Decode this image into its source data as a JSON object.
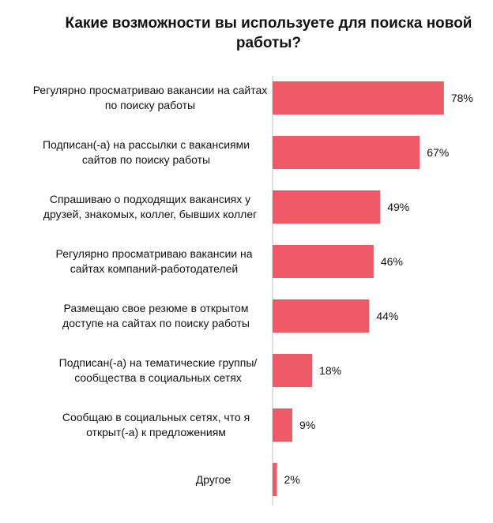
{
  "chart_data": {
    "type": "bar",
    "orientation": "horizontal",
    "title": "Какие возможности вы используете для поиска новой работы?",
    "categories": [
      "Регулярно просматриваю вакансии  на сайтах по поиску работы",
      "Подписан(-а) на рассылки с вакансиями сайтов по поиску работы",
      "Спрашиваю о подходящих вакансиях у друзей, знакомых, коллег, бывших коллег",
      "Регулярно просматриваю вакансии на сайтах компаний-работодателей",
      "Размещаю свое резюме в открытом доступе на сайтах по поиску работы",
      "Подписан(-а) на тематические группы/сообщества в социальных сетях",
      "Сообщаю в социальных сетях, что я открыт(-а) к предложениям",
      "Другое"
    ],
    "values": [
      78,
      67,
      49,
      46,
      44,
      18,
      9,
      2
    ],
    "value_labels": [
      "78%",
      "67%",
      "49%",
      "46%",
      "44%",
      "18%",
      "9%",
      "2%"
    ],
    "unit": "%",
    "xlim": [
      0,
      100
    ],
    "grid": false,
    "bar_color": "#ee5a68",
    "axis_color": "#bfbfbf"
  }
}
